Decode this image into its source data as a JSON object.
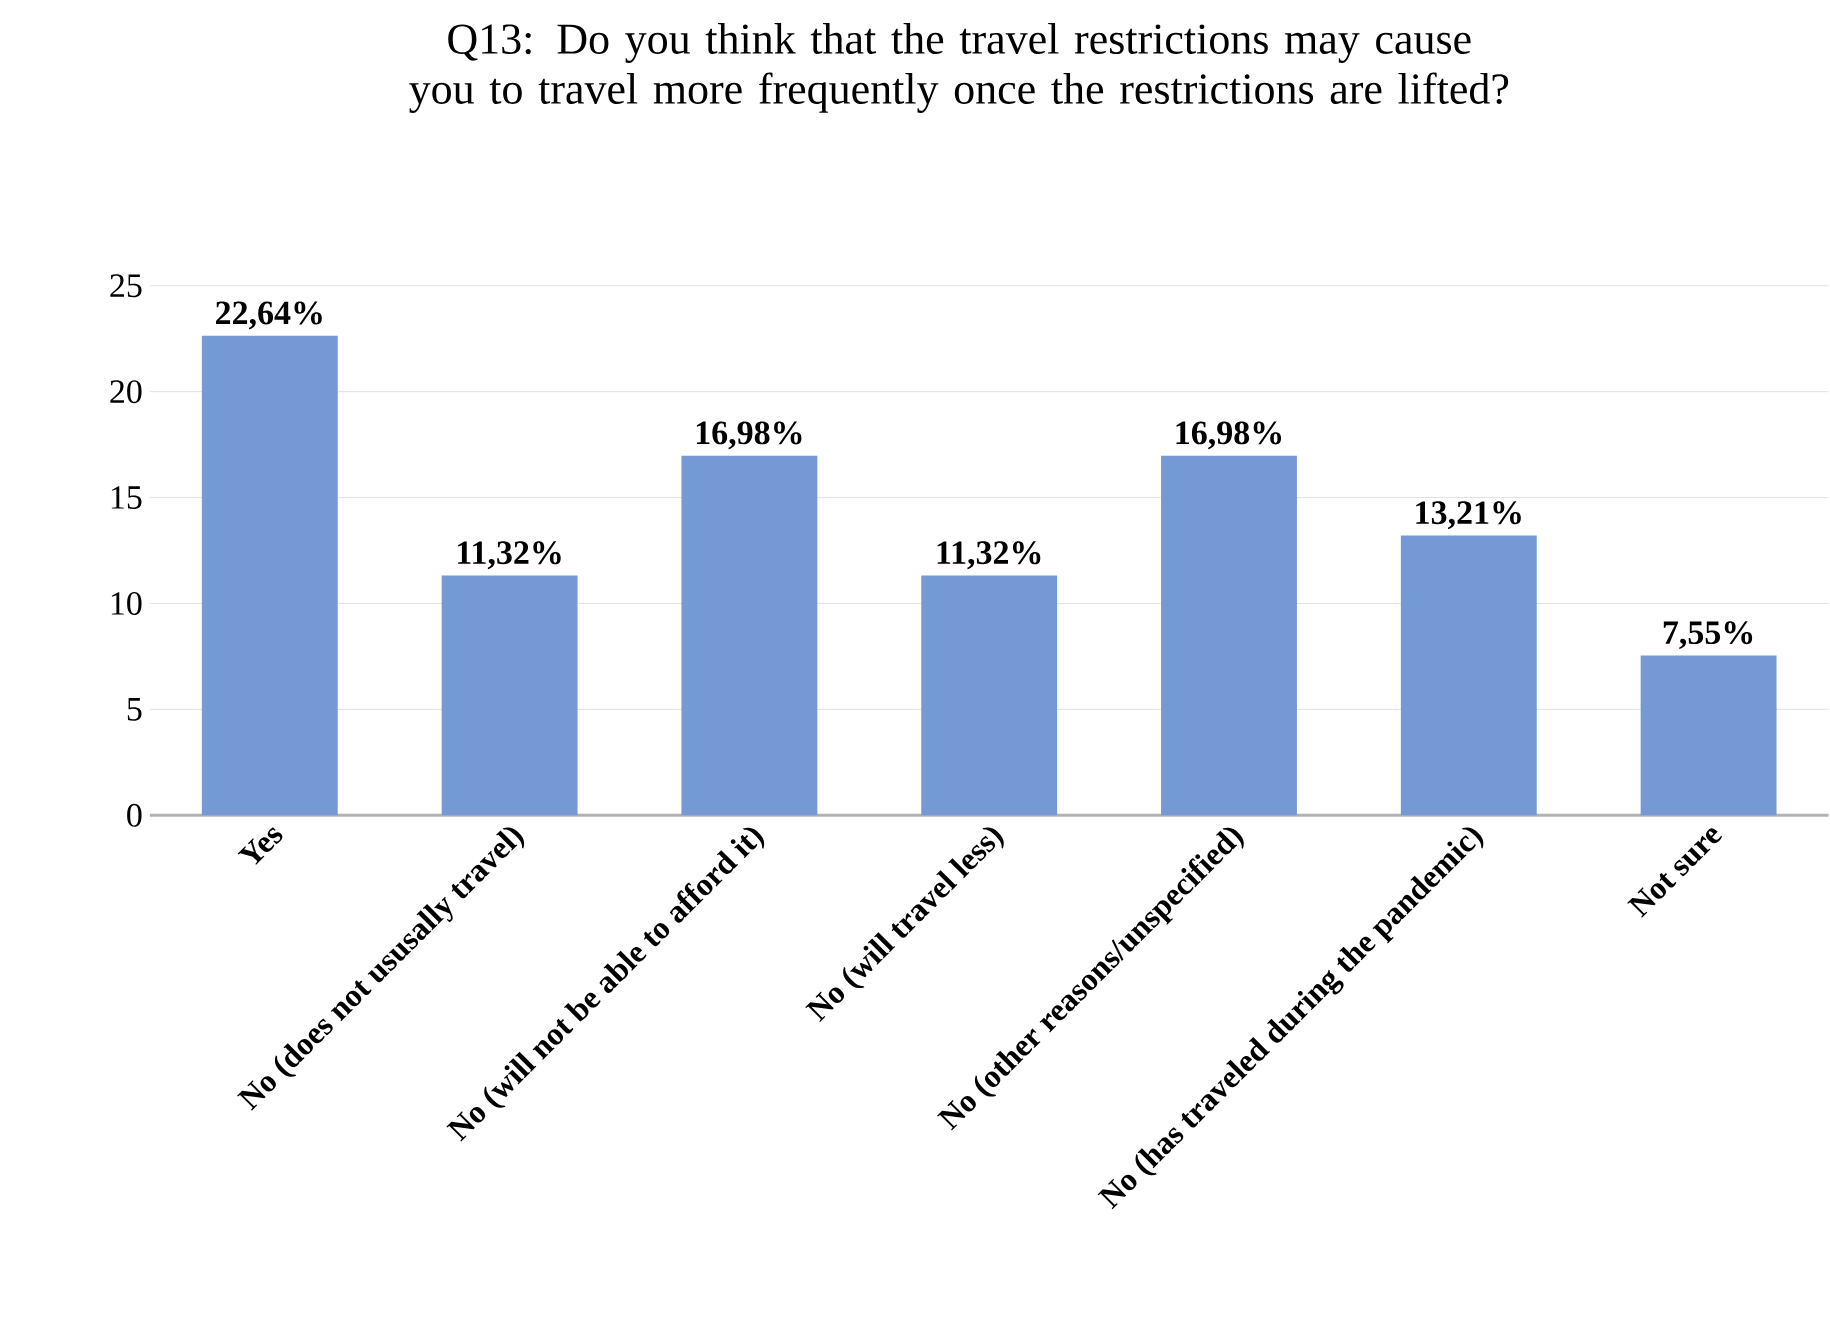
{
  "chart_data": {
    "type": "bar",
    "title": "Q13: Do you think that the travel restrictions may cause you to travel more frequently once the restrictions are lifted?",
    "categories": [
      "Yes",
      "No (does not ususally travel)",
      "No (will not be able to afford it)",
      "No (will travel less)",
      "No (other reasons/unspecified)",
      "No (has traveled during the pandemic)",
      "Not sure"
    ],
    "values": [
      22.64,
      11.32,
      16.98,
      11.32,
      16.98,
      13.21,
      7.55
    ],
    "value_labels": [
      "22,64%",
      "11,32%",
      "16,98%",
      "11,32%",
      "16,98%",
      "13,21%",
      "7,55%"
    ],
    "color": "#7599d4",
    "ylim": [
      0,
      25
    ],
    "yticks": [
      0,
      5,
      10,
      15,
      20,
      25
    ],
    "grid": "y"
  }
}
